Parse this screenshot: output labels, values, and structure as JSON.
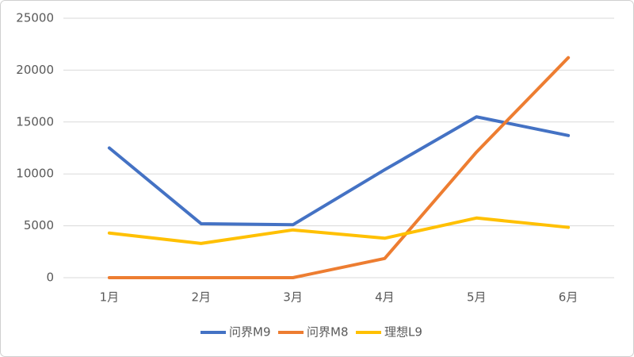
{
  "chart_data": {
    "type": "line",
    "categories": [
      "1月",
      "2月",
      "3月",
      "4月",
      "5月",
      "6月"
    ],
    "series": [
      {
        "name": "问界M9",
        "color": "#4472c4",
        "values": [
          12500,
          5200,
          5100,
          10400,
          15500,
          13700
        ]
      },
      {
        "name": "问界M8",
        "color": "#ed7d31",
        "values": [
          0,
          0,
          0,
          1850,
          12100,
          21200
        ]
      },
      {
        "name": "理想L9",
        "color": "#ffc000",
        "values": [
          4300,
          3300,
          4600,
          3800,
          5750,
          4850
        ]
      }
    ],
    "ylim": [
      0,
      25000
    ],
    "yticks": [
      0,
      5000,
      10000,
      15000,
      20000,
      25000
    ],
    "grid": true,
    "legend": "bottom"
  }
}
